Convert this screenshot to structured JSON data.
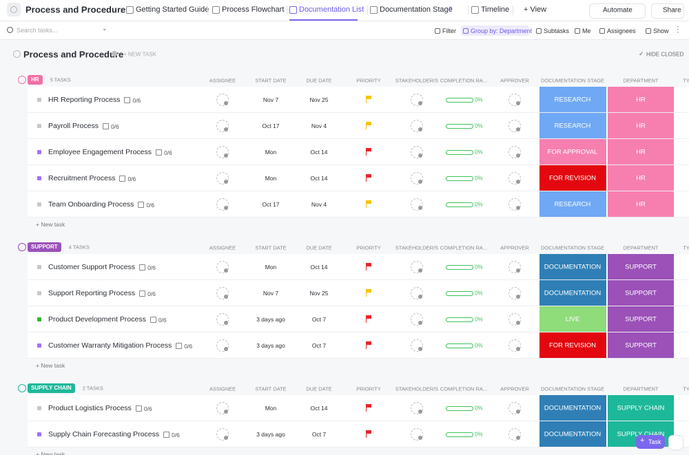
{
  "header": {
    "title": "Process and Procedure",
    "tabs": [
      "Getting Started Guide",
      "Process Flowchart",
      "Documentation List",
      "Documentation Stage",
      "Timeline",
      "+ View"
    ],
    "stage_badge": "2",
    "automate": "Automate",
    "share": "Share"
  },
  "toolbar": {
    "search": "Search tasks...",
    "filter": "Filter",
    "group_by": "Group by: Department",
    "subtasks": "Subtasks",
    "me": "Me",
    "assignees": "Assignees",
    "show": "Show"
  },
  "list": {
    "title": "Process and Procedure",
    "new_task": "+ NEW TASK",
    "hide_closed": "HIDE CLOSED",
    "add_button": "Task"
  },
  "columns": [
    "ASSIGNEE",
    "START DATE",
    "DUE DATE",
    "PRIORITY",
    "STAKEHOLDER/S",
    "COMPLETION RA...",
    "APPROVER",
    "DOCUMENTATION STAGE",
    "DEPARTMENT",
    "TY"
  ],
  "groups": [
    {
      "name": "HR",
      "count": "5 TASKS",
      "color": "#f36fa6",
      "add": "+ New task",
      "tasks": [
        {
          "name": "HR Reporting Process",
          "subtasks": "0/6",
          "status_color": "#c8c8c8",
          "start": "Nov 7",
          "due": "Nov 25",
          "flag": "#f5c400",
          "completion": "0%",
          "stage": "RESEARCH",
          "stage_color": "#6fa8f4",
          "department": "HR",
          "department_color": "#f77fb0"
        },
        {
          "name": "Payroll Process",
          "subtasks": "0/6",
          "status_color": "#c8c8c8",
          "start": "Oct 17",
          "due": "Nov 4",
          "flag": "#f5c400",
          "completion": "0%",
          "stage": "RESEARCH",
          "stage_color": "#6fa8f4",
          "department": "HR",
          "department_color": "#f77fb0"
        },
        {
          "name": "Employee Engagement Process",
          "subtasks": "0/6",
          "status_color": "#a371f7",
          "start": "Mon",
          "due": "Oct 14",
          "flag": "#e5262b",
          "completion": "0%",
          "stage": "FOR APPROVAL",
          "stage_color": "#f77fb0",
          "department": "HR",
          "department_color": "#f77fb0"
        },
        {
          "name": "Recruitment Process",
          "subtasks": "0/6",
          "status_color": "#a371f7",
          "start": "Mon",
          "due": "Oct 14",
          "flag": "#e5262b",
          "completion": "0%",
          "stage": "FOR REVISION",
          "stage_color": "#e3080f",
          "department": "HR",
          "department_color": "#f77fb0"
        },
        {
          "name": "Team Onboarding Process",
          "subtasks": "0/6",
          "status_color": "#c8c8c8",
          "start": "Oct 17",
          "due": "Nov 4",
          "flag": "#f5c400",
          "completion": "0%",
          "stage": "RESEARCH",
          "stage_color": "#6fa8f4",
          "department": "HR",
          "department_color": "#f77fb0"
        }
      ]
    },
    {
      "name": "SUPPORT",
      "count": "4 TASKS",
      "color": "#9b51b8",
      "add": "+ New task",
      "tasks": [
        {
          "name": "Customer Support Process",
          "subtasks": "0/6",
          "status_color": "#c8c8c8",
          "start": "Mon",
          "due": "Oct 14",
          "flag": "#e5262b",
          "completion": "0%",
          "stage": "DOCUMENTATION",
          "stage_color": "#2f7fb6",
          "department": "SUPPORT",
          "department_color": "#9b51b8"
        },
        {
          "name": "Support Reporting Process",
          "subtasks": "0/6",
          "status_color": "#c8c8c8",
          "start": "Nov 7",
          "due": "Nov 25",
          "flag": "#f5c400",
          "completion": "0%",
          "stage": "DOCUMENTATION",
          "stage_color": "#2f7fb6",
          "department": "SUPPORT",
          "department_color": "#9b51b8"
        },
        {
          "name": "Product Development Process",
          "subtasks": "0/6",
          "status_color": "#2eb82e",
          "start": "3 days ago",
          "due": "Oct 7",
          "flag": "#e5262b",
          "completion": "0%",
          "stage": "LIVE",
          "stage_color": "#8fdc7a",
          "department": "SUPPORT",
          "department_color": "#9b51b8"
        },
        {
          "name": "Customer Warranty Mitigation Process",
          "subtasks": "0/6",
          "status_color": "#a371f7",
          "start": "3 days ago",
          "due": "Oct 7",
          "flag": "#e5262b",
          "completion": "0%",
          "stage": "FOR REVISION",
          "stage_color": "#e3080f",
          "department": "SUPPORT",
          "department_color": "#9b51b8"
        }
      ]
    },
    {
      "name": "SUPPLY CHAIN",
      "count": "2 TASKS",
      "color": "#1db89a",
      "add": "+ New task",
      "tasks": [
        {
          "name": "Product Logistics Process",
          "subtasks": "0/6",
          "status_color": "#c8c8c8",
          "start": "Mon",
          "due": "Oct 14",
          "flag": "#e5262b",
          "completion": "0%",
          "stage": "DOCUMENTATION",
          "stage_color": "#2f7fb6",
          "department": "SUPPLY CHAIN",
          "department_color": "#1db89a"
        },
        {
          "name": "Supply Chain Forecasting Process",
          "subtasks": "0/6",
          "status_color": "#a371f7",
          "start": "3 days ago",
          "due": "Oct 7",
          "flag": "#e5262b",
          "completion": "0%",
          "stage": "DOCUMENTATION",
          "stage_color": "#2f7fb6",
          "department": "SUPPLY CHAIN",
          "department_color": "#1db89a"
        }
      ]
    }
  ]
}
